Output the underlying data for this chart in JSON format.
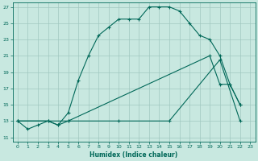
{
  "xlabel": "Humidex (Indice chaleur)",
  "background_color": "#c8e8e0",
  "grid_color": "#a0c8c0",
  "line_color": "#006858",
  "xlim": [
    -0.5,
    23.5
  ],
  "ylim": [
    10.5,
    27.5
  ],
  "xticks": [
    0,
    1,
    2,
    3,
    4,
    5,
    6,
    7,
    8,
    9,
    10,
    11,
    12,
    13,
    14,
    15,
    16,
    17,
    18,
    19,
    20,
    21,
    22,
    23
  ],
  "yticks": [
    11,
    13,
    15,
    17,
    19,
    21,
    23,
    25,
    27
  ],
  "line1_x": [
    0,
    1,
    2,
    3,
    4,
    5,
    6,
    7,
    8,
    9,
    10,
    11,
    12,
    13,
    14,
    15,
    16,
    17,
    18,
    19,
    20,
    21,
    22
  ],
  "line1_y": [
    13,
    12,
    12.5,
    13,
    12.5,
    14,
    18,
    21,
    23.5,
    24.5,
    25.5,
    25.5,
    25.5,
    27,
    27,
    27,
    26.5,
    25,
    23.5,
    23,
    21,
    17.5,
    15
  ],
  "line2_x": [
    0,
    3,
    4,
    5,
    19,
    20,
    21,
    22
  ],
  "line2_y": [
    13,
    13,
    12.5,
    13,
    21,
    17.5,
    17.5,
    15
  ],
  "line3_x": [
    0,
    5,
    10,
    15,
    20,
    22
  ],
  "line3_y": [
    13,
    13,
    13,
    13,
    20.5,
    13
  ]
}
